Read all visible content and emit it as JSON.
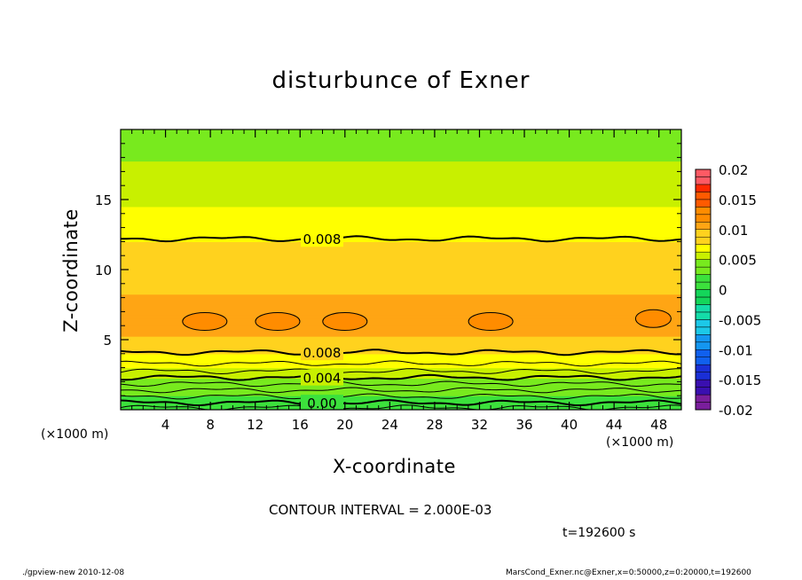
{
  "chart_data": {
    "type": "contour",
    "title": "disturbunce of Exner",
    "xlabel": "X-coordinate",
    "ylabel": "Z-coordinate",
    "x_unit_label": "(×1000 m)",
    "xlim": [
      0,
      50
    ],
    "ylim": [
      0,
      20
    ],
    "x_ticks": [
      "4",
      "8",
      "12",
      "16",
      "20",
      "24",
      "28",
      "32",
      "36",
      "40",
      "44",
      "48"
    ],
    "y_ticks": [
      "5",
      "10",
      "15"
    ],
    "contour_interval_text": "CONTOUR INTERVAL = 2.000E-03",
    "time_text": "t=192600 s",
    "colorbar": {
      "levels": [
        "0.02",
        "0.015",
        "0.01",
        "0.005",
        "0",
        "-0.005",
        "-0.01",
        "-0.015",
        "-0.02"
      ],
      "range": [
        -0.02,
        0.02
      ]
    },
    "vertical_profile": [
      {
        "z": 0.0,
        "value": 0.0008
      },
      {
        "z": 0.5,
        "value": 0.0016
      },
      {
        "z": 1.0,
        "value": 0.0027
      },
      {
        "z": 1.5,
        "value": 0.0036
      },
      {
        "z": 2.0,
        "value": 0.0044
      },
      {
        "z": 2.5,
        "value": 0.0054
      },
      {
        "z": 3.0,
        "value": 0.0064
      },
      {
        "z": 3.5,
        "value": 0.0072
      },
      {
        "z": 4.0,
        "value": 0.008
      },
      {
        "z": 4.5,
        "value": 0.0088
      },
      {
        "z": 5.0,
        "value": 0.0094
      },
      {
        "z": 6.0,
        "value": 0.01
      },
      {
        "z": 7.0,
        "value": 0.01
      },
      {
        "z": 8.0,
        "value": 0.0096
      },
      {
        "z": 9.0,
        "value": 0.009
      },
      {
        "z": 10.0,
        "value": 0.0087
      },
      {
        "z": 11.0,
        "value": 0.0084
      },
      {
        "z": 12.0,
        "value": 0.008
      },
      {
        "z": 13.0,
        "value": 0.0074
      },
      {
        "z": 14.0,
        "value": 0.0068
      },
      {
        "z": 15.0,
        "value": 0.0063
      },
      {
        "z": 16.0,
        "value": 0.0058
      },
      {
        "z": 17.0,
        "value": 0.0053
      },
      {
        "z": 18.0,
        "value": 0.0049
      },
      {
        "z": 19.0,
        "value": 0.0045
      },
      {
        "z": 20.0,
        "value": 0.0042
      }
    ],
    "labeled_contours": [
      {
        "label": "0.008",
        "z": 12.2
      },
      {
        "label": "0.008",
        "z": 4.1
      },
      {
        "label": "0.004",
        "z": 2.3
      },
      {
        "label": "0.00",
        "z": 0.5
      }
    ],
    "closed_contours": [
      {
        "x_center": 7.5,
        "z_center": 6.3
      },
      {
        "x_center": 14.0,
        "z_center": 6.3
      },
      {
        "x_center": 20.0,
        "z_center": 6.3
      },
      {
        "x_center": 33.0,
        "z_center": 6.3
      },
      {
        "x_center": 47.5,
        "z_center": 6.5
      }
    ]
  },
  "footer": {
    "left": "./gpview-new  2010-12-08",
    "right": "MarsCond_Exner.nc@Exner,x=0:50000,z=0:20000,t=192600"
  }
}
